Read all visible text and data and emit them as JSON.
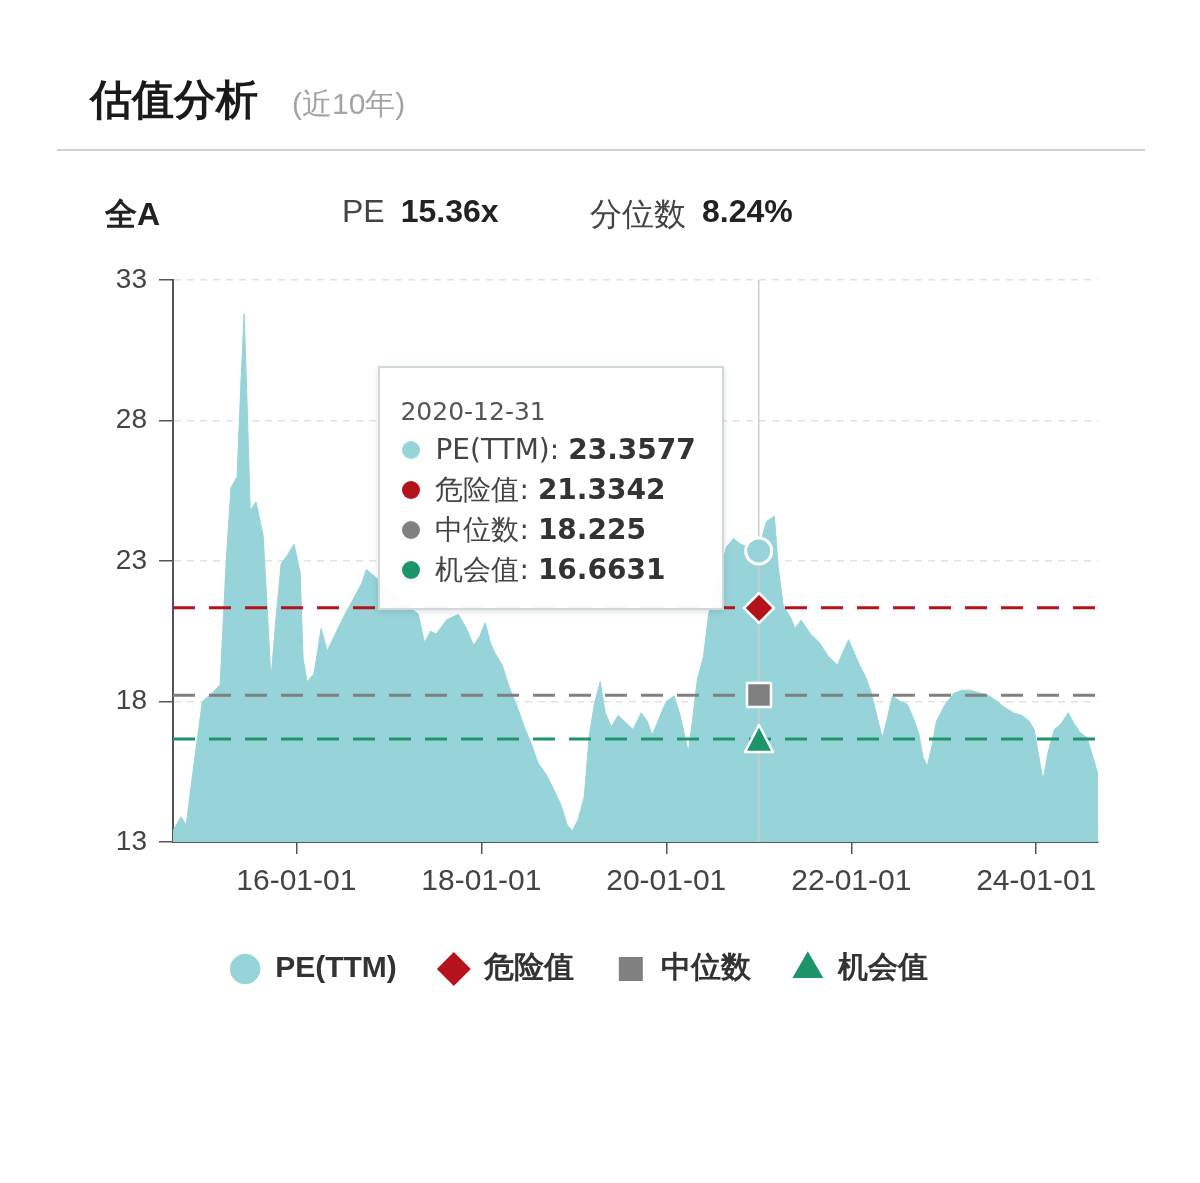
{
  "chart_data": {
    "type": "area",
    "title": "估值分析",
    "subtitle": "(近10年)",
    "annotations": [
      "全A",
      "PE 15.36x",
      "分位数 8.24%",
      "2020-12-31",
      "PE(TTM): 23.3577",
      "危险值: 21.3342",
      "中位数: 18.225",
      "机会值: 16.6631"
    ],
    "x": [
      "2014-09-01",
      "2014-10-03",
      "2014-10-23",
      "2014-11-23",
      "2014-12-26",
      "2015-02-03",
      "2015-03-06",
      "2015-03-30",
      "2015-04-18",
      "2015-05-12",
      "2015-05-28",
      "2015-06-09",
      "2015-06-21",
      "2015-07-03",
      "2015-07-26",
      "2015-08-23",
      "2015-09-07",
      "2015-09-23",
      "2015-10-13",
      "2015-11-02",
      "2015-11-26",
      "2015-12-23",
      "2016-01-16",
      "2016-01-28",
      "2016-02-13",
      "2016-03-11",
      "2016-04-08",
      "2016-05-02",
      "2016-06-03",
      "2016-07-05",
      "2016-08-10",
      "2016-09-15",
      "2016-10-04",
      "2016-11-28",
      "2017-02-15",
      "2017-04-27",
      "2017-05-21",
      "2017-06-14",
      "2017-07-07",
      "2017-08-16",
      "2017-10-02",
      "2017-11-03",
      "2017-12-01",
      "2017-12-24",
      "2018-01-16",
      "2018-02-05",
      "2018-02-25",
      "2018-03-24",
      "2018-04-21",
      "2018-05-19",
      "2018-06-19",
      "2018-07-17",
      "2018-08-13",
      "2018-09-14",
      "2018-10-12",
      "2018-11-12",
      "2018-12-06",
      "2018-12-26",
      "2019-01-18",
      "2019-02-11",
      "2019-03-03",
      "2019-03-23",
      "2019-04-15",
      "2019-05-05",
      "2019-05-29",
      "2019-06-25",
      "2019-07-19",
      "2019-08-23",
      "2019-09-24",
      "2019-10-18",
      "2019-11-06",
      "2019-12-04",
      "2020-01-01",
      "2020-02-01",
      "2020-02-25",
      "2020-03-28",
      "2020-04-13",
      "2020-05-03",
      "2020-05-27",
      "2020-06-16",
      "2020-07-17",
      "2020-08-26",
      "2020-09-22",
      "2020-10-20",
      "2020-12-31",
      "2021-01-30",
      "2021-03-03",
      "2021-03-18",
      "2021-04-07",
      "2021-05-05",
      "2021-05-24",
      "2021-06-17",
      "2021-07-23",
      "2021-08-27",
      "2021-10-02",
      "2021-11-07",
      "2021-12-01",
      "2021-12-21",
      "2022-01-09",
      "2022-02-02",
      "2022-02-25",
      "2022-03-21",
      "2022-04-14",
      "2022-05-03",
      "2022-05-23",
      "2022-06-12",
      "2022-07-14",
      "2022-08-10",
      "2022-09-03",
      "2022-09-23",
      "2022-10-12",
      "2022-10-28",
      "2022-11-17",
      "2022-12-03",
      "2023-01-07",
      "2023-02-11",
      "2023-03-14",
      "2023-04-15",
      "2023-05-24",
      "2023-06-29",
      "2023-07-31",
      "2023-08-27",
      "2023-10-02",
      "2023-11-06",
      "2023-12-04",
      "2023-12-24",
      "2024-01-12",
      "2024-01-28",
      "2024-02-17",
      "2024-03-12",
      "2024-04-08",
      "2024-05-06",
      "2024-05-30",
      "2024-06-23",
      "2024-07-20",
      "2024-08-13",
      "2024-09-01"
    ],
    "series": [
      {
        "name": "PE(TTM)",
        "color": "#96d4da",
        "values": [
          13.4,
          13.9,
          13.6,
          15.8,
          18.0,
          18.3,
          18.6,
          23.0,
          25.6,
          26.0,
          29.5,
          31.8,
          28.5,
          24.8,
          25.1,
          23.9,
          21.5,
          18.8,
          21.0,
          22.9,
          23.2,
          23.6,
          22.6,
          19.5,
          18.7,
          19.0,
          20.6,
          19.8,
          20.4,
          21.0,
          21.6,
          22.2,
          22.7,
          null,
          null,
          21.1,
          20.1,
          20.5,
          20.4,
          20.9,
          21.1,
          20.6,
          20.0,
          20.3,
          20.8,
          20.1,
          19.7,
          19.3,
          18.5,
          17.9,
          17.1,
          16.5,
          15.8,
          15.4,
          14.9,
          14.3,
          13.6,
          13.4,
          13.8,
          14.6,
          16.8,
          17.9,
          18.7,
          17.6,
          17.1,
          17.5,
          17.3,
          17.0,
          17.6,
          17.3,
          16.8,
          17.4,
          18.0,
          18.2,
          17.5,
          16.2,
          17.3,
          18.8,
          19.6,
          21.1,
          null,
          23.5,
          23.8,
          23.6,
          23.3577,
          24.4,
          24.6,
          22.8,
          21.4,
          21.0,
          20.6,
          20.9,
          20.4,
          20.1,
          19.6,
          19.3,
          19.8,
          20.2,
          19.8,
          19.3,
          18.9,
          18.3,
          17.4,
          16.7,
          17.4,
          18.2,
          18.0,
          17.9,
          17.4,
          16.9,
          16.0,
          15.7,
          16.5,
          17.3,
          17.9,
          18.3,
          18.4,
          18.4,
          18.3,
          18.2,
          18.0,
          17.8,
          17.6,
          17.5,
          17.3,
          17.0,
          16.0,
          15.2,
          16.2,
          17.0,
          17.2,
          17.6,
          17.2,
          16.9,
          16.7,
          16.0,
          15.4
        ]
      }
    ],
    "xlim": [
      "2014-09-01",
      "2024-09-01"
    ],
    "xticks": [
      {
        "value": "2016-01-01",
        "label": "16-01-01"
      },
      {
        "value": "2018-01-01",
        "label": "18-01-01"
      },
      {
        "value": "2020-01-01",
        "label": "20-01-01"
      },
      {
        "value": "2022-01-01",
        "label": "22-01-01"
      },
      {
        "value": "2024-01-01",
        "label": "24-01-01"
      }
    ],
    "ylim": [
      13,
      33
    ],
    "yticks": [
      13,
      18,
      23,
      28,
      33
    ],
    "ref_lines": [
      {
        "axis": "y",
        "value": 21.3342,
        "label": "危险值",
        "color": "#b5121b",
        "line_style": "dashed"
      },
      {
        "axis": "y",
        "value": 18.225,
        "label": "中位数",
        "color": "#808080",
        "line_style": "dashed"
      },
      {
        "axis": "y",
        "value": 16.6631,
        "label": "机会值",
        "color": "#1e9469",
        "line_style": "dashed"
      },
      {
        "axis": "x",
        "value": "2020-12-31",
        "color": "#cccccc",
        "line_style": "solid"
      }
    ],
    "grid": "y",
    "legend": "bottom"
  }
}
